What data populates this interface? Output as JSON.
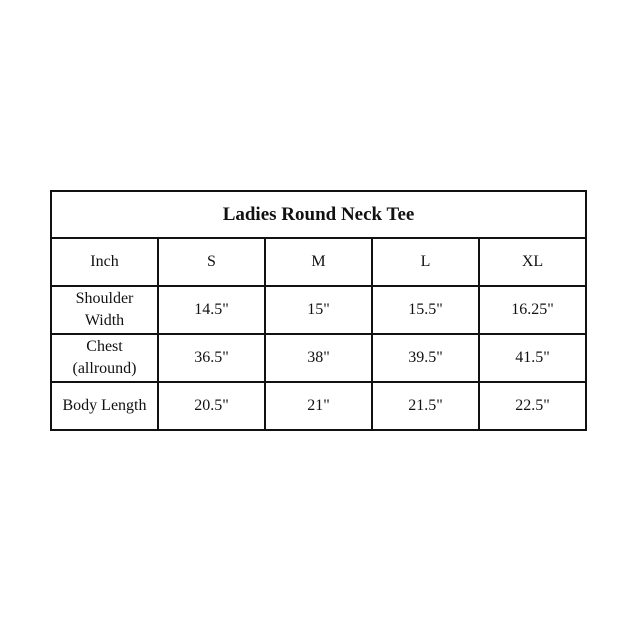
{
  "title": "Ladies Round Neck Tee",
  "header": [
    "Inch",
    "S",
    "M",
    "L",
    "XL"
  ],
  "rows": [
    {
      "label": [
        "Shoulder",
        "Width"
      ],
      "values": [
        "14.5\"",
        "15\"",
        "15.5\"",
        "16.25\""
      ]
    },
    {
      "label": [
        "Chest",
        "(allround)"
      ],
      "values": [
        "36.5\"",
        "38\"",
        "39.5\"",
        "41.5\""
      ]
    },
    {
      "label": [
        "Body Length"
      ],
      "values": [
        "20.5\"",
        "21\"",
        "21.5\"",
        "22.5\""
      ]
    }
  ]
}
